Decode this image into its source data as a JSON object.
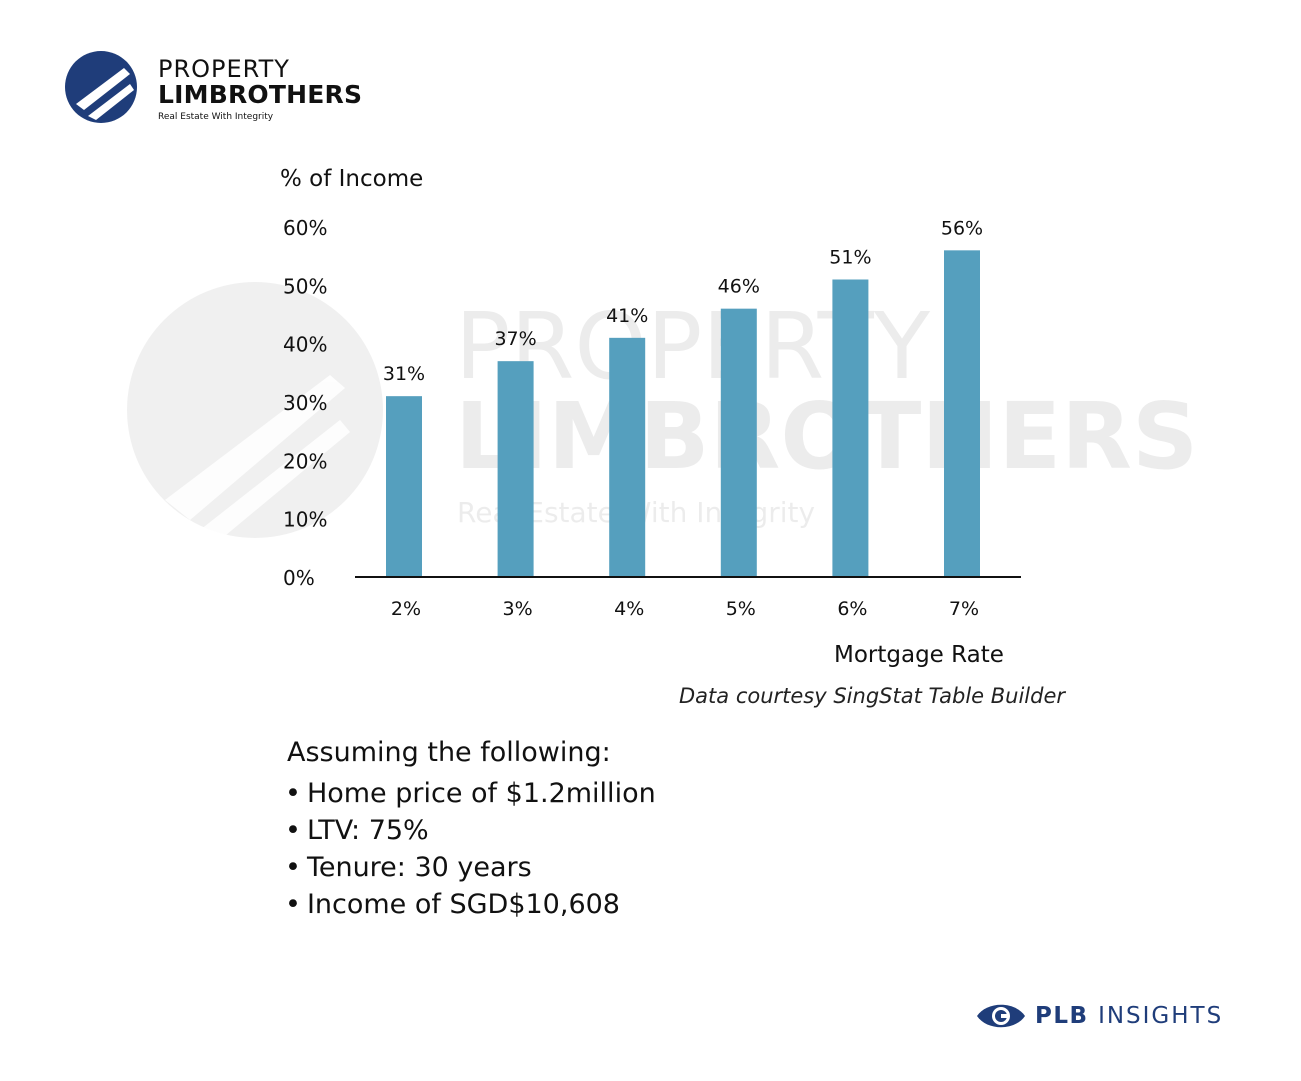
{
  "brand": {
    "name_line1": "PROPERTY",
    "name_line2": "LIMBROTHERS",
    "tagline": "Real Estate With Integrity",
    "color": "#1f3d7a"
  },
  "footer": {
    "brand_bold": "PLB",
    "brand_rest": "INSIGHTS",
    "icon": "eye-icon"
  },
  "chart_data": {
    "type": "bar",
    "ylabel": "% of Income",
    "xlabel": "Mortgage Rate",
    "source": "Data courtesy SingStat Table Builder",
    "categories": [
      "2%",
      "3%",
      "4%",
      "5%",
      "6%",
      "7%"
    ],
    "values": [
      31,
      37,
      41,
      46,
      51,
      56
    ],
    "value_labels": [
      "31%",
      "37%",
      "41%",
      "46%",
      "51%",
      "56%"
    ],
    "yticks": [
      0,
      10,
      20,
      30,
      40,
      50,
      60
    ],
    "ytick_labels": [
      "0%",
      "10%",
      "20%",
      "30%",
      "40%",
      "50%",
      "60%"
    ],
    "ylim": [
      0,
      60
    ],
    "bar_color": "#559fbe",
    "grid": false
  },
  "assumptions": {
    "title": "Assuming the following:",
    "items": [
      "Home price of $1.2million",
      "LTV: 75%",
      "Tenure: 30 years",
      "Income of SGD$10,608"
    ]
  }
}
